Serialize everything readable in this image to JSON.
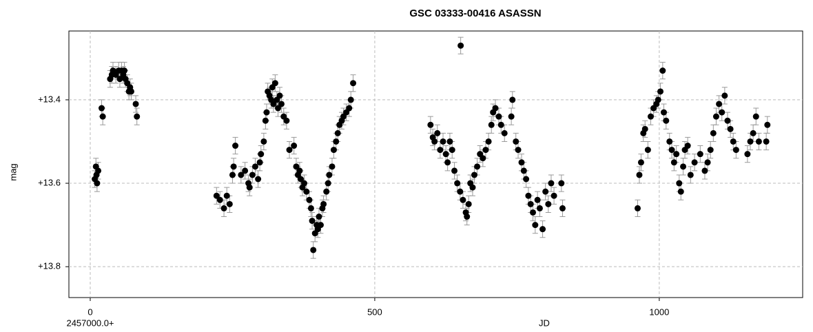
{
  "chart_data": {
    "type": "scatter",
    "title": "GSC 03333-00416  ASASSN",
    "x_label": "JD",
    "y_label": "mag",
    "x_offset_label": "2457000.0+",
    "xlim": [
      -37.5,
      1252
    ],
    "ylim": [
      13.235,
      13.874
    ],
    "y_inverted": true,
    "xticks": [
      0,
      500,
      1000
    ],
    "yticks": [
      {
        "value": 13.4,
        "label": "+13.4"
      },
      {
        "value": 13.6,
        "label": "+13.6"
      },
      {
        "value": 13.8,
        "label": "+13.8"
      }
    ],
    "grid": true,
    "series": [
      {
        "color": "#000000",
        "error_color": "#999999",
        "error": 0.02,
        "x": [
          8,
          10,
          11,
          12,
          14,
          20,
          22,
          35,
          38,
          40,
          45,
          50,
          52,
          55,
          58,
          60,
          62,
          65,
          68,
          70,
          72,
          80,
          82,
          222,
          228,
          235,
          240,
          245,
          250,
          252,
          255,
          265,
          272,
          278,
          280,
          285,
          290,
          295,
          298,
          300,
          305,
          308,
          310,
          312,
          315,
          318,
          320,
          322,
          325,
          328,
          330,
          333,
          336,
          340,
          345,
          350,
          358,
          362,
          365,
          368,
          370,
          373,
          376,
          380,
          385,
          388,
          390,
          392,
          395,
          398,
          400,
          402,
          405,
          408,
          410,
          415,
          418,
          420,
          425,
          428,
          432,
          435,
          438,
          442,
          445,
          450,
          455,
          458,
          462,
          598,
          602,
          605,
          610,
          615,
          620,
          625,
          628,
          632,
          636,
          640,
          645,
          651,
          650,
          655,
          660,
          662,
          665,
          668,
          672,
          675,
          680,
          685,
          690,
          695,
          700,
          705,
          708,
          712,
          718,
          722,
          728,
          740,
          742,
          748,
          752,
          758,
          762,
          766,
          770,
          774,
          778,
          782,
          786,
          790,
          795,
          800,
          805,
          810,
          815,
          828,
          830,
          962,
          965,
          968,
          972,
          975,
          980,
          985,
          990,
          995,
          998,
          1002,
          1006,
          1008,
          1012,
          1018,
          1022,
          1026,
          1030,
          1035,
          1038,
          1042,
          1045,
          1050,
          1055,
          1062,
          1072,
          1080,
          1085,
          1090,
          1095,
          1100,
          1105,
          1110,
          1115,
          1120,
          1125,
          1130,
          1135,
          1155,
          1160,
          1165,
          1170,
          1175,
          1188,
          1190
        ],
        "values": [
          13.59,
          13.56,
          13.58,
          13.6,
          13.57,
          13.42,
          13.44,
          13.35,
          13.34,
          13.33,
          13.34,
          13.33,
          13.35,
          13.33,
          13.34,
          13.33,
          13.35,
          13.36,
          13.38,
          13.37,
          13.38,
          13.41,
          13.44,
          13.63,
          13.64,
          13.66,
          13.63,
          13.65,
          13.58,
          13.56,
          13.51,
          13.58,
          13.57,
          13.6,
          13.61,
          13.58,
          13.56,
          13.59,
          13.55,
          13.53,
          13.5,
          13.45,
          13.43,
          13.38,
          13.39,
          13.4,
          13.37,
          13.41,
          13.36,
          13.4,
          13.42,
          13.39,
          13.41,
          13.44,
          13.45,
          13.52,
          13.51,
          13.56,
          13.58,
          13.57,
          13.59,
          13.61,
          13.6,
          13.62,
          13.64,
          13.66,
          13.69,
          13.76,
          13.72,
          13.7,
          13.71,
          13.68,
          13.7,
          13.66,
          13.65,
          13.62,
          13.6,
          13.58,
          13.56,
          13.52,
          13.5,
          13.48,
          13.46,
          13.45,
          13.44,
          13.43,
          13.42,
          13.4,
          13.36,
          13.46,
          13.49,
          13.5,
          13.48,
          13.52,
          13.5,
          13.53,
          13.55,
          13.5,
          13.52,
          13.57,
          13.6,
          13.27,
          13.62,
          13.64,
          13.67,
          13.68,
          13.65,
          13.6,
          13.61,
          13.58,
          13.56,
          13.53,
          13.54,
          13.52,
          13.5,
          13.46,
          13.43,
          13.42,
          13.44,
          13.46,
          13.48,
          13.44,
          13.4,
          13.5,
          13.52,
          13.55,
          13.57,
          13.59,
          13.63,
          13.65,
          13.67,
          13.7,
          13.64,
          13.66,
          13.71,
          13.62,
          13.65,
          13.6,
          13.63,
          13.6,
          13.66,
          13.66,
          13.58,
          13.55,
          13.48,
          13.47,
          13.52,
          13.44,
          13.42,
          13.41,
          13.4,
          13.38,
          13.33,
          13.43,
          13.45,
          13.5,
          13.52,
          13.55,
          13.53,
          13.6,
          13.62,
          13.56,
          13.52,
          13.51,
          13.58,
          13.55,
          13.53,
          13.57,
          13.55,
          13.52,
          13.48,
          13.44,
          13.41,
          13.43,
          13.39,
          13.45,
          13.47,
          13.5,
          13.52,
          13.53,
          13.5,
          13.48,
          13.44,
          13.5,
          13.5,
          13.46
        ]
      }
    ]
  }
}
